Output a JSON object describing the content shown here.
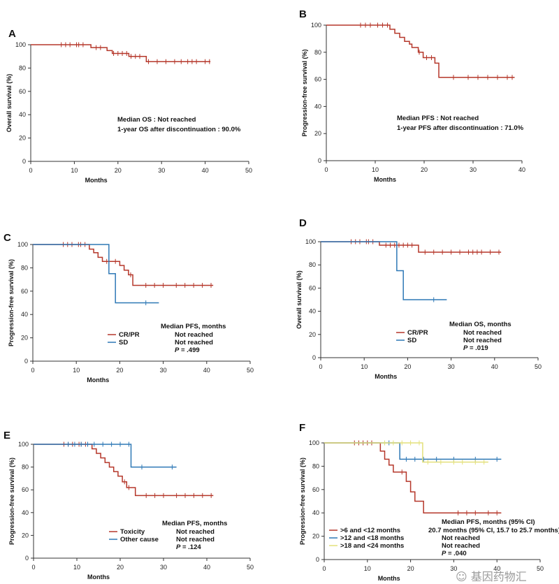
{
  "chart_data": [
    {
      "panel": "A",
      "type": "line",
      "xlabel": "Months",
      "ylabel": "Overall survival (%)",
      "xlim": [
        0,
        50
      ],
      "ylim": [
        0,
        100
      ],
      "xticks": [
        0,
        10,
        20,
        30,
        40,
        50
      ],
      "yticks": [
        0,
        20,
        40,
        60,
        80,
        100
      ],
      "annotations": [
        "Median OS : Not reached",
        "1-year OS after discontinuation : 90.0%"
      ],
      "series": [
        {
          "name": "",
          "color": "#b5372a",
          "x": [
            0,
            13.8,
            17.5,
            18.7,
            22.5,
            26.5,
            41.2
          ],
          "y": [
            100,
            97.5,
            95,
            92.5,
            90,
            85.5,
            85.5
          ],
          "censors": [
            7,
            8,
            9,
            10.5,
            11,
            12,
            15,
            16,
            19,
            20,
            21,
            22,
            23,
            24,
            25,
            27,
            29,
            31,
            33,
            34.5,
            36,
            37,
            38,
            40,
            41
          ]
        }
      ]
    },
    {
      "panel": "B",
      "type": "line",
      "xlabel": "Months",
      "ylabel": "Progression-free survival (%)",
      "xlim": [
        0,
        40
      ],
      "ylim": [
        0,
        100
      ],
      "xticks": [
        0,
        10,
        20,
        30,
        40
      ],
      "yticks": [
        0,
        20,
        40,
        60,
        80,
        100
      ],
      "annotations": [
        "Median PFS : Not reached",
        "1-year PFS after discontinuation : 71.0%"
      ],
      "series": [
        {
          "name": "",
          "color": "#b5372a",
          "x": [
            0,
            13,
            14,
            15,
            16,
            17,
            17.5,
            18.8,
            19.8,
            22.2,
            23,
            38.5
          ],
          "y": [
            100,
            97,
            94,
            91,
            88,
            86,
            83.5,
            80,
            76,
            72,
            61.5,
            61.5
          ],
          "censors": [
            7,
            8,
            9,
            10.5,
            11.5,
            12.5,
            19,
            20.5,
            21.5,
            26,
            29,
            31,
            33,
            35,
            37,
            38
          ]
        }
      ]
    },
    {
      "panel": "C",
      "type": "line",
      "xlabel": "Months",
      "ylabel": "Progression-free survival (%)",
      "xlim": [
        0,
        50
      ],
      "ylim": [
        0,
        100
      ],
      "xticks": [
        0,
        10,
        20,
        30,
        40,
        50
      ],
      "yticks": [
        0,
        20,
        40,
        60,
        80,
        100
      ],
      "legend_title": "Median PFS, months",
      "pvalue": ".499",
      "series": [
        {
          "name": "CR/PR",
          "legend_value": "Not reached",
          "color": "#b5372a",
          "x": [
            0,
            13,
            14,
            15,
            16,
            20,
            21,
            22,
            23,
            41.5
          ],
          "y": [
            100,
            96,
            93,
            89,
            85.5,
            82,
            78,
            74,
            65,
            65
          ],
          "censors": [
            7,
            8,
            9,
            10.5,
            11,
            12,
            17,
            19,
            22.5,
            26,
            28,
            30,
            33,
            35,
            37,
            39,
            41
          ]
        },
        {
          "name": "SD",
          "legend_value": "Not reached",
          "color": "#2e78b6",
          "x": [
            0,
            17.5,
            19,
            29
          ],
          "y": [
            100,
            75,
            50,
            50
          ],
          "censors": [
            26
          ]
        }
      ]
    },
    {
      "panel": "D",
      "type": "line",
      "xlabel": "Months",
      "ylabel": "Overall survival (%)",
      "xlim": [
        0,
        50
      ],
      "ylim": [
        0,
        100
      ],
      "xticks": [
        0,
        10,
        20,
        30,
        40,
        50
      ],
      "yticks": [
        0,
        20,
        40,
        60,
        80,
        100
      ],
      "legend_title": "Median OS, months",
      "pvalue": ".019",
      "series": [
        {
          "name": "CR/PR",
          "legend_value": "Not reached",
          "color": "#b5372a",
          "x": [
            0,
            13.5,
            22.5,
            41.5
          ],
          "y": [
            100,
            97,
            91,
            91
          ],
          "censors": [
            7,
            8,
            9,
            10.5,
            11,
            12,
            15,
            16,
            17,
            18,
            19,
            20,
            21,
            24,
            26,
            28,
            30,
            32,
            34,
            35,
            36,
            37,
            39,
            41
          ]
        },
        {
          "name": "SD",
          "legend_value": "Not reached",
          "color": "#2e78b6",
          "x": [
            0,
            17.5,
            19,
            29
          ],
          "y": [
            100,
            75,
            50,
            50
          ],
          "censors": [
            26
          ]
        }
      ]
    },
    {
      "panel": "E",
      "type": "line",
      "xlabel": "Months",
      "ylabel": "Progression-free survival (%)",
      "xlim": [
        0,
        50
      ],
      "ylim": [
        0,
        100
      ],
      "xticks": [
        0,
        10,
        20,
        30,
        40,
        50
      ],
      "yticks": [
        0,
        20,
        40,
        60,
        80,
        100
      ],
      "legend_title": "Median PFS, months",
      "pvalue": ".124",
      "series": [
        {
          "name": "Toxicity",
          "legend_value": "Not reached",
          "color": "#b5372a",
          "x": [
            0,
            13.5,
            14.5,
            15.5,
            16.5,
            17.5,
            18.5,
            19.5,
            20.5,
            21.5,
            23.5,
            41.5
          ],
          "y": [
            100,
            96,
            92,
            88,
            84,
            80,
            76,
            72,
            67,
            62,
            55,
            55
          ],
          "censors": [
            7,
            8,
            9,
            10.5,
            11,
            12,
            21,
            22,
            26,
            28,
            30,
            33,
            35,
            37,
            39,
            41
          ]
        },
        {
          "name": "Other cause",
          "legend_value": "Not reached",
          "color": "#2e78b6",
          "x": [
            0,
            22.5,
            33
          ],
          "y": [
            100,
            80,
            80
          ],
          "censors": [
            8,
            9.5,
            11,
            12.5,
            14,
            16,
            18,
            20,
            22,
            25,
            32
          ]
        }
      ]
    },
    {
      "panel": "F",
      "type": "line",
      "xlabel": "Months",
      "ylabel": "Progression-free survival (%)",
      "xlim": [
        0,
        50
      ],
      "ylim": [
        0,
        100
      ],
      "xticks": [
        0,
        10,
        20,
        30,
        40,
        50
      ],
      "yticks": [
        0,
        20,
        40,
        60,
        80,
        100
      ],
      "legend_title": "Median PFS, months (95% CI)",
      "pvalue": ".040",
      "series": [
        {
          "name": ">6 and <12 months",
          "legend_value": "20.7 months (95% CI, 15.7 to 25.7 months)",
          "color": "#b5372a",
          "x": [
            0,
            13,
            14,
            15,
            16,
            17,
            19,
            20,
            21,
            23,
            41
          ],
          "y": [
            100,
            93,
            86,
            81,
            75,
            75,
            67,
            58,
            50,
            40,
            40
          ],
          "censors": [
            7,
            8,
            9,
            10,
            11,
            18,
            31,
            33,
            35,
            38,
            40
          ]
        },
        {
          "name": ">12 and <18 months",
          "legend_value": "Not reached",
          "color": "#2e78b6",
          "x": [
            0,
            17.5,
            41
          ],
          "y": [
            100,
            86,
            86
          ],
          "censors": [
            14,
            15,
            19,
            21,
            23,
            26,
            30,
            35,
            40
          ]
        },
        {
          "name": ">18 and <24 months",
          "legend_value": "Not reached",
          "color": "#e3e07a",
          "x": [
            0,
            22.8,
            38
          ],
          "y": [
            100,
            83.5,
            83.5
          ],
          "censors": [
            14,
            16,
            18,
            20,
            22,
            24,
            27,
            30,
            32,
            35,
            37
          ]
        }
      ]
    }
  ],
  "watermark": "基因药物汇"
}
